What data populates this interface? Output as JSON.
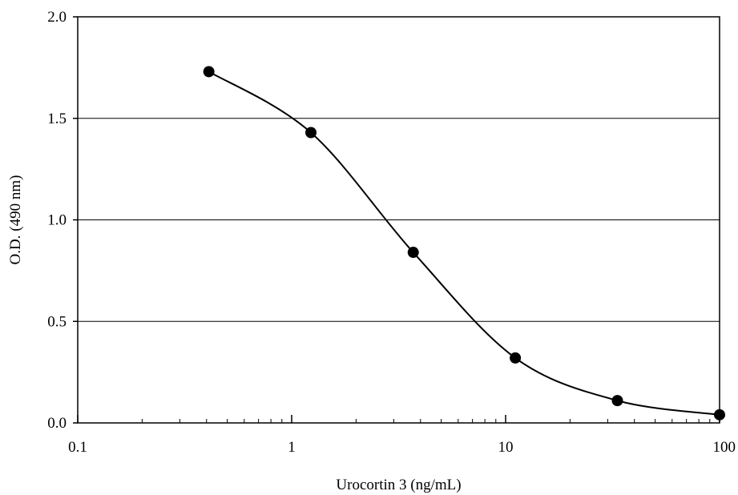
{
  "chart_data": {
    "type": "scatter",
    "xscale": "log",
    "xlim": [
      0.1,
      100
    ],
    "ylim": [
      0,
      2.0
    ],
    "xlabel": "Urocortin 3 (ng/mL)",
    "ylabel": "O.D. (490 nm)",
    "xticks": [
      0.1,
      1,
      10,
      100
    ],
    "xtick_labels": [
      "0.1",
      "1",
      "10",
      "100"
    ],
    "yticks": [
      0,
      0.5,
      1.0,
      1.5,
      2.0
    ],
    "ytick_labels": [
      "0.0",
      "0.5",
      "1.0",
      "1.5",
      "2.0"
    ],
    "grid": "horizontal",
    "series": [
      {
        "x": [
          0.41,
          1.23,
          3.7,
          11.1,
          33.3,
          100
        ],
        "y": [
          1.73,
          1.43,
          0.84,
          0.32,
          0.11,
          0.04
        ],
        "marker": "filled-circle",
        "line": "smooth",
        "color": "#000000"
      }
    ]
  }
}
